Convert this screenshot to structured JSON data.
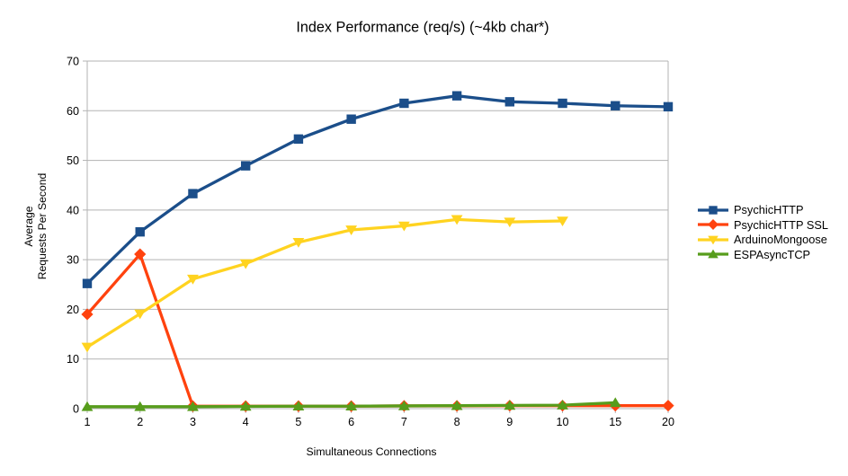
{
  "chart_data": {
    "type": "line",
    "title": "Index Performance (req/s) (~4kb char*)",
    "xlabel": "Simultaneous Connections",
    "ylabel": "Average Requests Per Second",
    "ylabel_lines": [
      "Average",
      "Requests Per Second"
    ],
    "categories": [
      "1",
      "2",
      "3",
      "4",
      "5",
      "6",
      "7",
      "8",
      "9",
      "10",
      "15",
      "20"
    ],
    "ylim": [
      0,
      70
    ],
    "ytick_step": 10,
    "ytick_labels": [
      "0",
      "10",
      "20",
      "30",
      "40",
      "50",
      "60",
      "70"
    ],
    "grid": "horizontal",
    "grid_color": "#b3b3b3",
    "legend_position": "right",
    "series": [
      {
        "name": "PsychicHTTP",
        "color": "#1b4e8a",
        "marker": "square",
        "values": [
          25.2,
          35.6,
          43.3,
          48.9,
          54.3,
          58.3,
          61.5,
          63.0,
          61.8,
          61.5,
          61.0,
          60.8
        ]
      },
      {
        "name": "PsychicHTTP SSL",
        "color": "#ff420e",
        "marker": "diamond",
        "values": [
          19.0,
          31.1,
          0.5,
          0.5,
          0.5,
          0.5,
          0.55,
          0.55,
          0.6,
          0.6,
          0.6,
          0.6
        ]
      },
      {
        "name": "ArduinoMongoose",
        "color": "#ffd320",
        "marker": "triangle-down",
        "values": [
          12.4,
          19.1,
          26.1,
          29.2,
          33.5,
          36.0,
          36.8,
          38.1,
          37.6,
          37.8,
          null,
          null
        ]
      },
      {
        "name": "ESPAsyncTCP",
        "color": "#579d1c",
        "marker": "triangle-up",
        "values": [
          0.4,
          0.4,
          0.4,
          0.45,
          0.5,
          0.5,
          0.55,
          0.6,
          0.65,
          0.7,
          1.2,
          null
        ]
      }
    ]
  }
}
